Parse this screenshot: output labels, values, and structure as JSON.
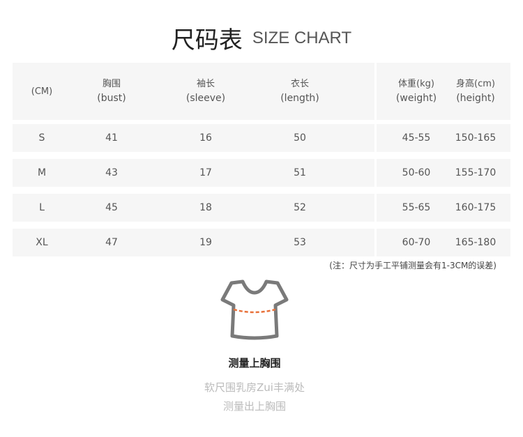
{
  "title": {
    "cn": "尺码表",
    "en": "SIZE CHART"
  },
  "header": [
    {
      "cn": "(CM)",
      "en": ""
    },
    {
      "cn": "胸围",
      "en": "(bust)"
    },
    {
      "cn": "袖长",
      "en": "(sleeve)"
    },
    {
      "cn": "衣长",
      "en": "(length)"
    },
    {
      "cn": "体重(kg)",
      "en": "(weight)"
    },
    {
      "cn": "身高(cm)",
      "en": "(height)"
    }
  ],
  "rows": [
    [
      "S",
      "41",
      "16",
      "50",
      "45-55",
      "150-165"
    ],
    [
      "M",
      "43",
      "17",
      "51",
      "50-60",
      "155-170"
    ],
    [
      "L",
      "45",
      "18",
      "52",
      "55-65",
      "160-175"
    ],
    [
      "XL",
      "47",
      "19",
      "53",
      "60-70",
      "165-180"
    ]
  ],
  "note": "(注：尺寸为手工平铺测量会有1-3CM的误差)",
  "measure": {
    "title": "测量上胸围",
    "line1": "软尺围乳房Zui丰满处",
    "line2": "测量出上胸围"
  },
  "colors": {
    "dash": "#e8713a",
    "shirt": "#7a7a7a",
    "row_bg": "#f6f6f6"
  }
}
